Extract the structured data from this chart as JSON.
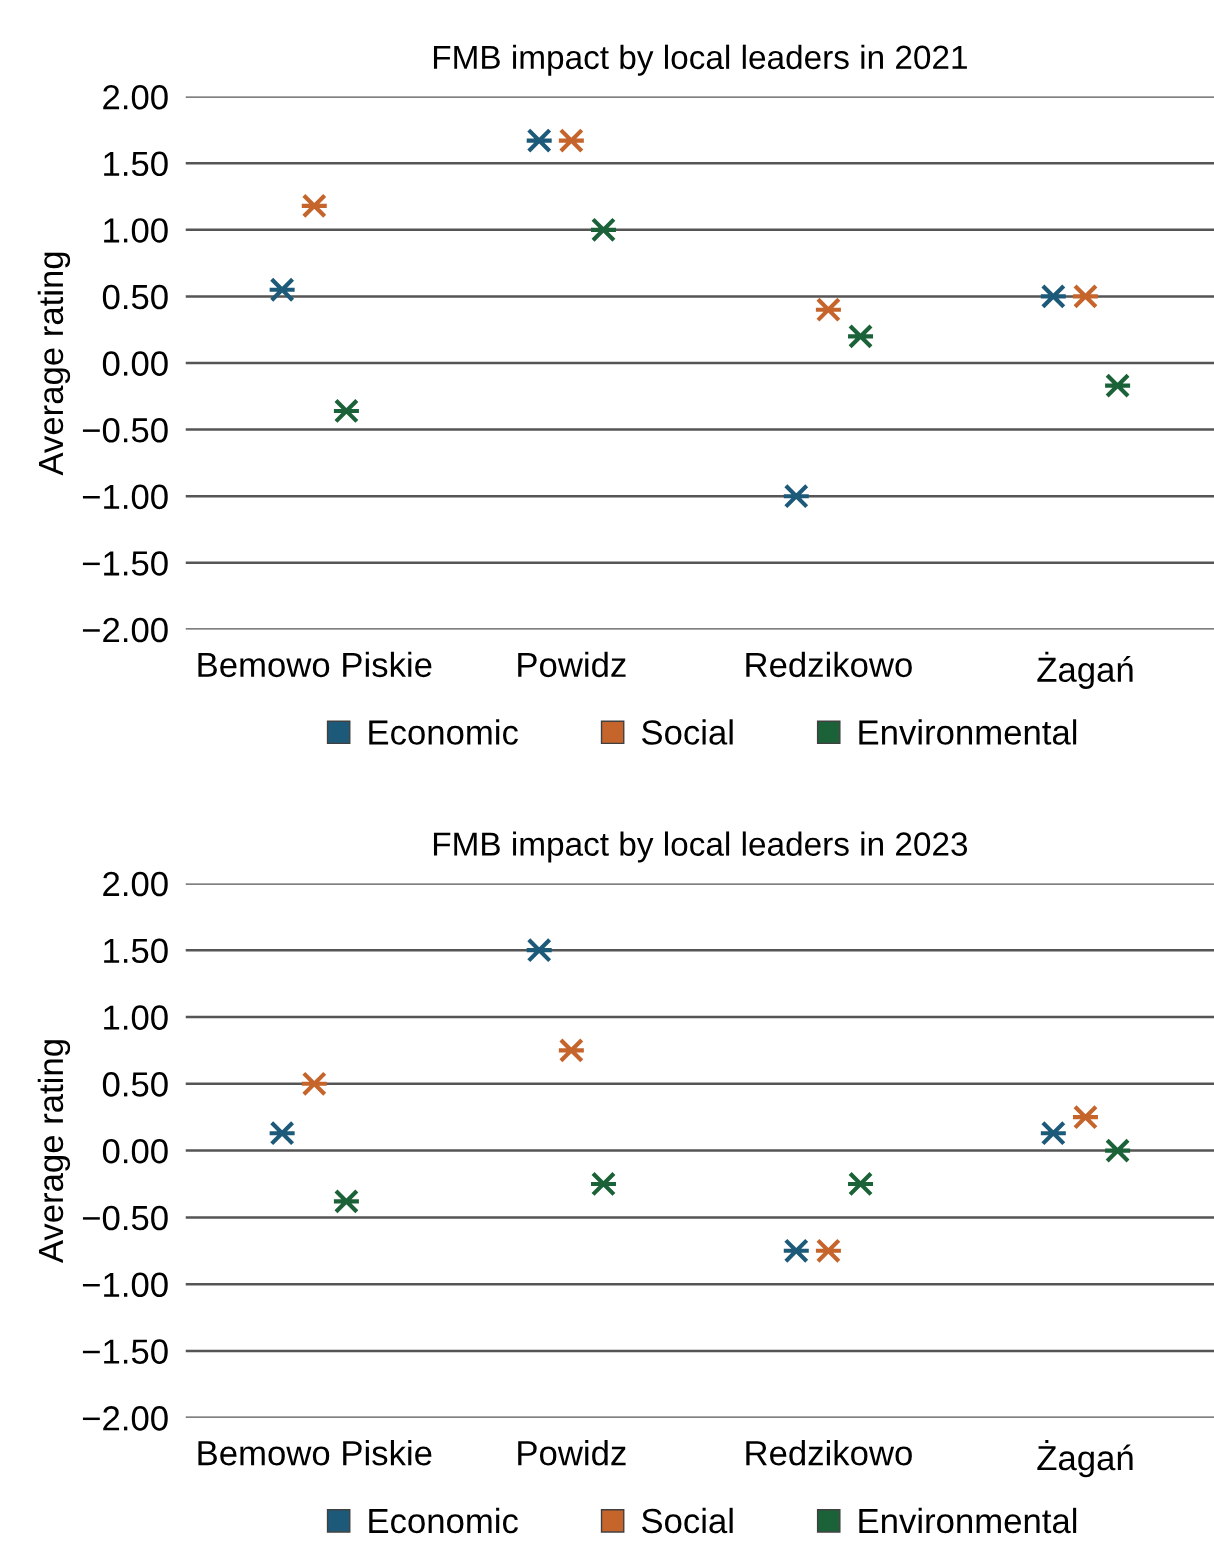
{
  "chart_data": [
    {
      "type": "scatter",
      "title": "FMB impact by local leaders in 2021",
      "ylabel": "Average rating",
      "categories": [
        "Bemowo Piskie",
        "Powidz",
        "Redzikowo",
        "Żagań"
      ],
      "series": [
        {
          "name": "Economic",
          "color": "#1d5a7a",
          "values": [
            0.55,
            1.67,
            -1.0,
            0.5
          ]
        },
        {
          "name": "Social",
          "color": "#c5652c",
          "values": [
            1.18,
            1.67,
            0.4,
            0.5
          ]
        },
        {
          "name": "Environmental",
          "color": "#1b6238",
          "values": [
            -0.36,
            1.0,
            0.2,
            -0.17
          ]
        }
      ],
      "ylim": [
        -2,
        2
      ],
      "yticks": [
        {
          "value": 2,
          "label": "2.00"
        },
        {
          "value": 1.5,
          "label": "1.50"
        },
        {
          "value": 1,
          "label": "1.00"
        },
        {
          "value": 0.5,
          "label": "0.50"
        },
        {
          "value": 0,
          "label": "0.00"
        },
        {
          "value": -0.5,
          "label": "−0.50"
        },
        {
          "value": -1,
          "label": "−1.00"
        },
        {
          "value": -1.5,
          "label": "−1.50"
        },
        {
          "value": -2,
          "label": "−2.00"
        }
      ],
      "grid": "y",
      "legend": "bottom",
      "marker": "cross"
    },
    {
      "type": "scatter",
      "title": "FMB impact by local leaders in 2023",
      "ylabel": "Average rating",
      "categories": [
        "Bemowo Piskie",
        "Powidz",
        "Redzikowo",
        "Żagań"
      ],
      "series": [
        {
          "name": "Economic",
          "color": "#1d5a7a",
          "values": [
            0.13,
            1.5,
            -0.75,
            0.13
          ]
        },
        {
          "name": "Social",
          "color": "#c5652c",
          "values": [
            0.5,
            0.75,
            -0.75,
            0.25
          ]
        },
        {
          "name": "Environmental",
          "color": "#1b6238",
          "values": [
            -0.38,
            -0.25,
            -0.25,
            0.0
          ]
        }
      ],
      "ylim": [
        -2,
        2
      ],
      "yticks": [
        {
          "value": 2,
          "label": "2.00"
        },
        {
          "value": 1.5,
          "label": "1.50"
        },
        {
          "value": 1,
          "label": "1.00"
        },
        {
          "value": 0.5,
          "label": "0.50"
        },
        {
          "value": 0,
          "label": "0.00"
        },
        {
          "value": -0.5,
          "label": "−0.50"
        },
        {
          "value": -1,
          "label": "−1.00"
        },
        {
          "value": -1.5,
          "label": "−1.50"
        },
        {
          "value": -2,
          "label": "−2.00"
        }
      ],
      "grid": "y",
      "legend": "bottom",
      "marker": "cross"
    }
  ]
}
